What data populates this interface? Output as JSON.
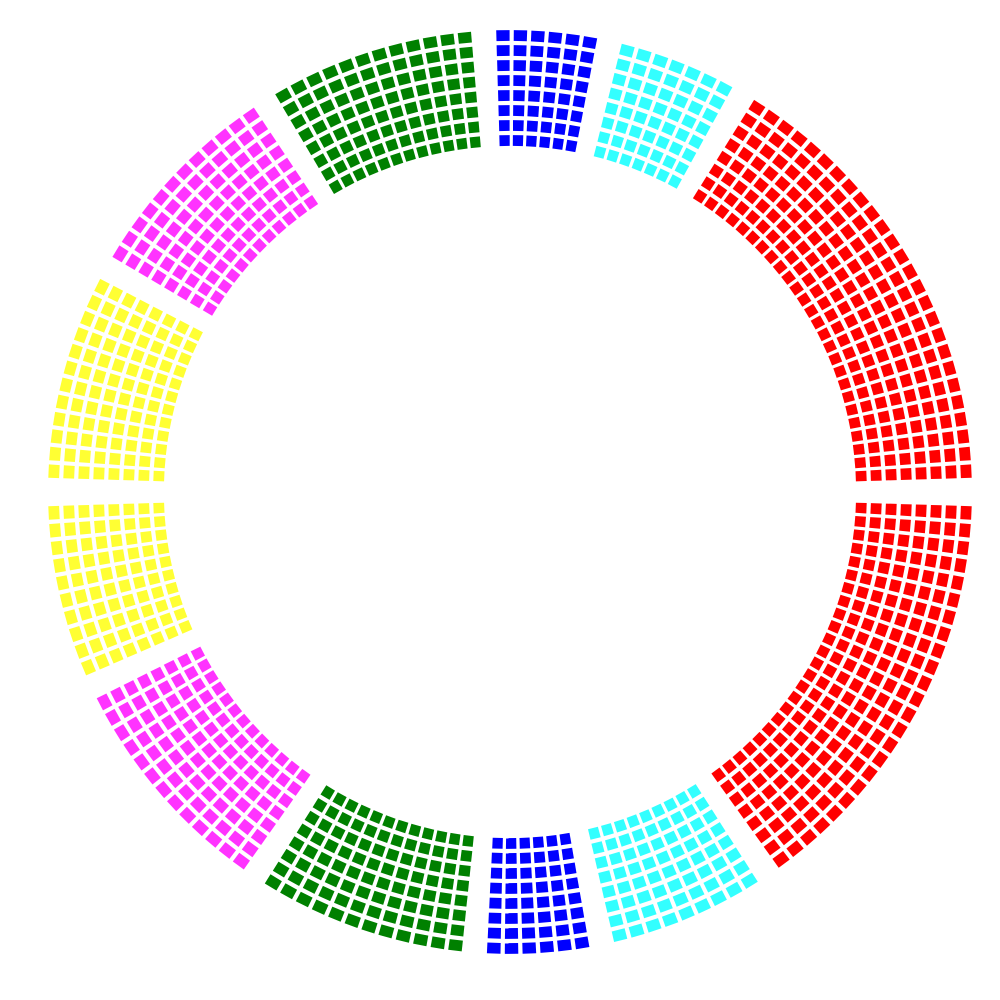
{
  "chart_data": {
    "type": "waffle-ring",
    "title": "",
    "legend": "none",
    "grid": false,
    "halves": [
      {
        "name": "",
        "groups": [
          {
            "color": "#0000ff",
            "columns": 6,
            "rows": 8
          },
          {
            "color": "#33ffff",
            "columns": 7,
            "rows": 8
          },
          {
            "color": "#ff0000",
            "columns": 26,
            "rows": 8
          },
          {
            "color": "#ffff33",
            "columns": 12,
            "rows": 8
          },
          {
            "color": "#ff33ff",
            "columns": 12,
            "rows": 8
          },
          {
            "color": "#008000",
            "columns": 12,
            "rows": 8
          }
        ]
      },
      {
        "name": "",
        "groups": [
          {
            "color": "#ff0000",
            "columns": 24,
            "rows": 8
          },
          {
            "color": "#33ffff",
            "columns": 9,
            "rows": 8
          },
          {
            "color": "#0000ff",
            "columns": 6,
            "rows": 8
          },
          {
            "color": "#008000",
            "columns": 12,
            "rows": 8
          },
          {
            "color": "#ff33ff",
            "columns": 13,
            "rows": 8
          },
          {
            "color": "#ffff33",
            "columns": 10,
            "rows": 8
          }
        ]
      }
    ]
  }
}
